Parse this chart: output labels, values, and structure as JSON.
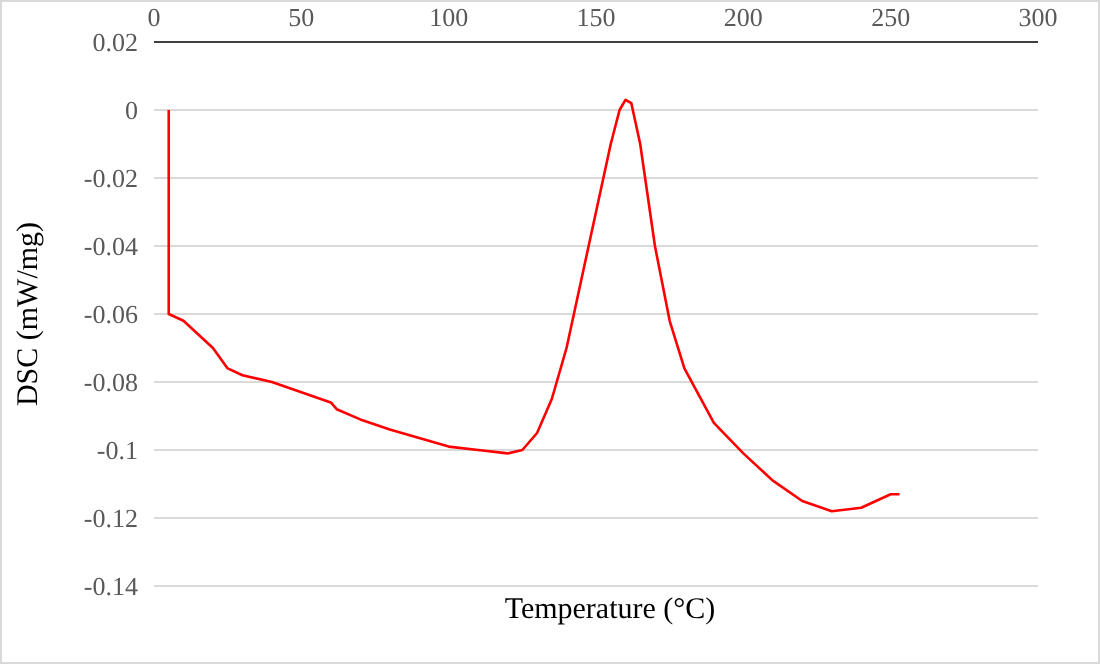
{
  "chart_data": {
    "type": "line",
    "xlabel": "Temperature (°C)",
    "ylabel": "DSC (mW/mg)",
    "series": [
      {
        "color": "#ff0000",
        "x": [
          5,
          5,
          10,
          20,
          25,
          30,
          40,
          50,
          60,
          62,
          70,
          80,
          100,
          110,
          120,
          125,
          130,
          135,
          140,
          145,
          150,
          155,
          158,
          160,
          162,
          165,
          170,
          175,
          180,
          190,
          200,
          210,
          220,
          230,
          240,
          250,
          253
        ],
        "values": [
          0,
          -0.06,
          -0.062,
          -0.07,
          -0.076,
          -0.078,
          -0.08,
          -0.083,
          -0.086,
          -0.088,
          -0.091,
          -0.094,
          -0.099,
          -0.1,
          -0.101,
          -0.1,
          -0.095,
          -0.085,
          -0.07,
          -0.05,
          -0.03,
          -0.01,
          0,
          0.003,
          0.002,
          -0.01,
          -0.04,
          -0.062,
          -0.076,
          -0.092,
          -0.101,
          -0.109,
          -0.115,
          -0.118,
          -0.117,
          -0.113,
          -0.113
        ]
      }
    ],
    "xlim": [
      0,
      300
    ],
    "xticks": [
      0,
      50,
      100,
      150,
      200,
      250,
      300
    ],
    "ylim": [
      -0.14,
      0.02
    ],
    "yticks": [
      0.02,
      0,
      -0.02,
      -0.04,
      -0.06,
      -0.08,
      -0.1,
      -0.12,
      -0.14
    ],
    "grid": "y",
    "marker": "none",
    "line_style": "solid"
  }
}
